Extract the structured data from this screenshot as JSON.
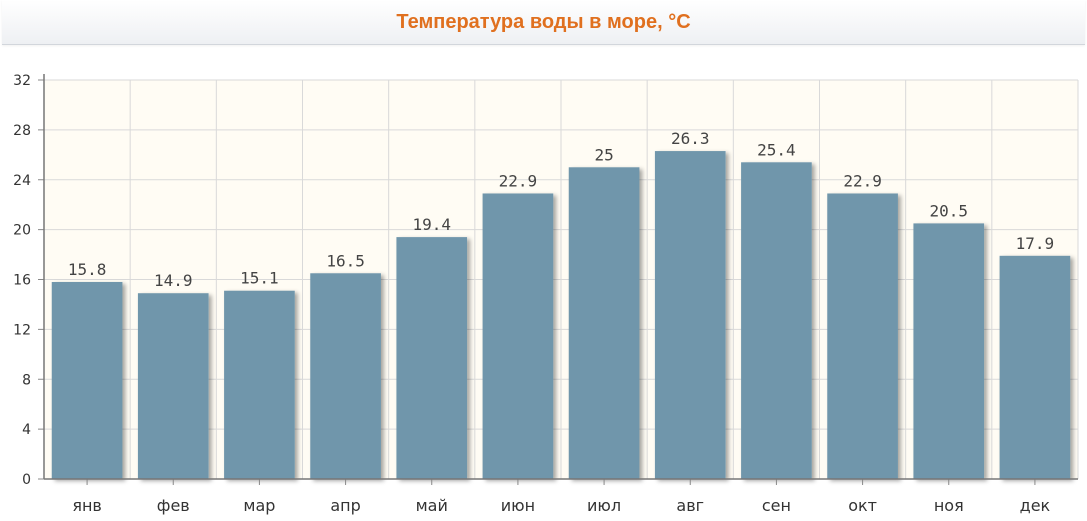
{
  "chart_data": {
    "type": "bar",
    "title": "Температура воды в море, °C",
    "categories": [
      "янв",
      "фев",
      "мар",
      "апр",
      "май",
      "июн",
      "июл",
      "авг",
      "сен",
      "окт",
      "ноя",
      "дек"
    ],
    "values": [
      15.8,
      14.9,
      15.1,
      16.5,
      19.4,
      22.9,
      25,
      26.3,
      25.4,
      22.9,
      20.5,
      17.9
    ],
    "data_labels": [
      "15.8",
      "14.9",
      "15.1",
      "16.5",
      "19.4",
      "22.9",
      "25",
      "26.3",
      "25.4",
      "22.9",
      "20.5",
      "17.9"
    ],
    "ylim": [
      0,
      32
    ],
    "yticks": [
      0,
      4,
      8,
      12,
      16,
      20,
      24,
      28,
      32
    ],
    "grid": true,
    "colors": {
      "bar": "#7096ab",
      "plot_background": "#fffcf4",
      "grid": "#d9d9d9",
      "title": "#e0701f"
    }
  }
}
